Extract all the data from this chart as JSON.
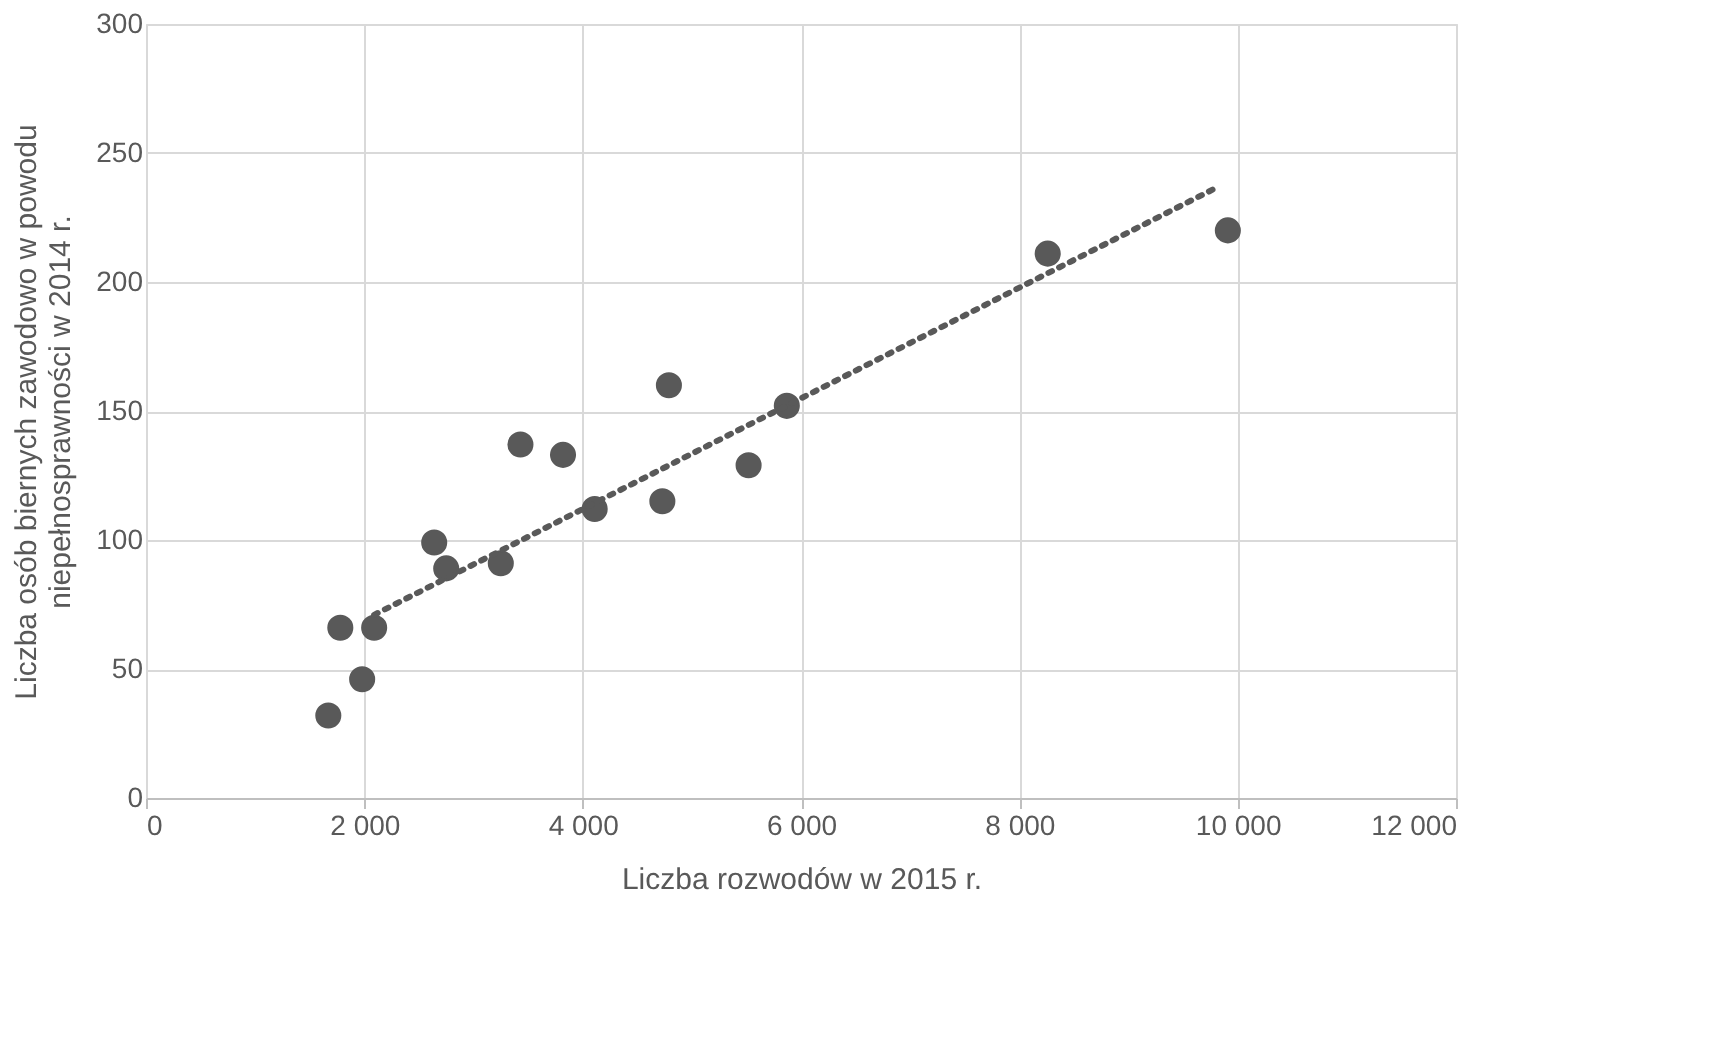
{
  "chart_data": {
    "type": "scatter",
    "xlabel": "Liczba rozwodów w 2015 r.",
    "ylabel": "Liczba osób biernych zawodowo w powodu niepełnosprawności w 2014 r.",
    "series": [
      {
        "color": "#595959",
        "marker": "circle",
        "x": [
          1670,
          1780,
          1980,
          2090,
          2640,
          2750,
          3250,
          3430,
          3820,
          4110,
          4730,
          4790,
          5520,
          5870,
          8260,
          9910
        ],
        "values": [
          32,
          66,
          46,
          66,
          99,
          89,
          91,
          137,
          133,
          112,
          115,
          160,
          129,
          152,
          211,
          220
        ]
      },
      {
        "type": "line",
        "color": "#595959",
        "line_style": "dotted",
        "x": [
          2090,
          9780
        ],
        "values": [
          71,
          236
        ]
      }
    ],
    "xlim": [
      0,
      12000
    ],
    "xticks": [
      {
        "value": 0,
        "label": "0"
      },
      {
        "value": 2000,
        "label": "2 000"
      },
      {
        "value": 4000,
        "label": "4 000"
      },
      {
        "value": 6000,
        "label": "6 000"
      },
      {
        "value": 8000,
        "label": "8 000"
      },
      {
        "value": 10000,
        "label": "10 000"
      },
      {
        "value": 12000,
        "label": "12 000"
      }
    ],
    "ylim": [
      0,
      300
    ],
    "yticks": [
      0,
      50,
      100,
      150,
      200,
      250,
      300
    ],
    "grid": true
  }
}
